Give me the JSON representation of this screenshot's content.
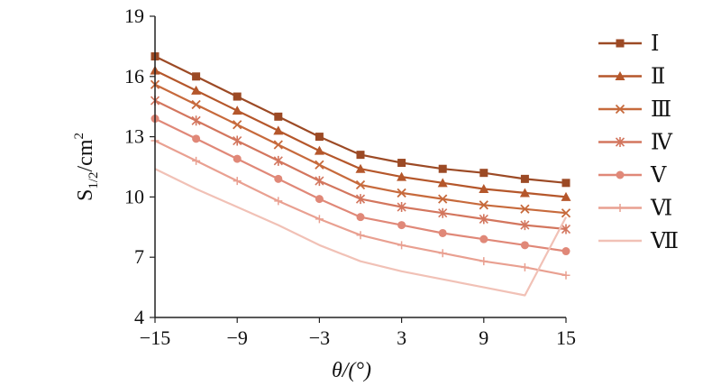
{
  "chart_data": {
    "type": "line",
    "title": "",
    "xlabel": "θ/(°)",
    "ylabel": "S1/2/cm2",
    "ylabel_parts": {
      "main": "S",
      "sub": "1/2",
      "unit": "/cm",
      "sup": "2"
    },
    "x": [
      -15,
      -12,
      -9,
      -6,
      -3,
      0,
      3,
      6,
      9,
      12,
      15
    ],
    "xticks": [
      -15,
      -9,
      -3,
      3,
      9,
      15
    ],
    "xtick_labels": [
      "−15",
      "−9",
      "−3",
      "3",
      "9",
      "15"
    ],
    "yticks": [
      4,
      7,
      10,
      13,
      16,
      19
    ],
    "xlim": [
      -15,
      15
    ],
    "ylim": [
      4,
      19
    ],
    "grid": false,
    "legend_position": "right",
    "series": [
      {
        "name": "Ⅰ",
        "color": "#9c4a25",
        "marker": "square",
        "values": [
          17.0,
          16.0,
          15.0,
          14.0,
          13.0,
          12.1,
          11.7,
          11.4,
          11.2,
          10.9,
          10.7
        ]
      },
      {
        "name": "Ⅱ",
        "color": "#b5572b",
        "marker": "triangle",
        "values": [
          16.3,
          15.3,
          14.3,
          13.3,
          12.3,
          11.4,
          11.0,
          10.7,
          10.4,
          10.2,
          10.0
        ]
      },
      {
        "name": "Ⅲ",
        "color": "#c76a3c",
        "marker": "x",
        "values": [
          15.6,
          14.6,
          13.6,
          12.6,
          11.6,
          10.6,
          10.2,
          9.9,
          9.6,
          9.4,
          9.2
        ]
      },
      {
        "name": "Ⅳ",
        "color": "#d3765e",
        "marker": "asterisk",
        "values": [
          14.8,
          13.8,
          12.8,
          11.8,
          10.8,
          9.9,
          9.5,
          9.2,
          8.9,
          8.6,
          8.4
        ]
      },
      {
        "name": "Ⅴ",
        "color": "#e08878",
        "marker": "circle",
        "values": [
          13.9,
          12.9,
          11.9,
          10.9,
          9.9,
          9.0,
          8.6,
          8.2,
          7.9,
          7.6,
          7.3
        ]
      },
      {
        "name": "Ⅵ",
        "color": "#e9a091",
        "marker": "plus",
        "values": [
          12.8,
          11.8,
          10.8,
          9.8,
          8.9,
          8.1,
          7.6,
          7.2,
          6.8,
          6.5,
          6.1
        ]
      },
      {
        "name": "Ⅶ",
        "color": "#f1c1b6",
        "marker": "none",
        "values": [
          11.4,
          10.4,
          9.5,
          8.6,
          7.6,
          6.8,
          6.3,
          5.9,
          5.5,
          5.1,
          9.0
        ]
      }
    ]
  }
}
